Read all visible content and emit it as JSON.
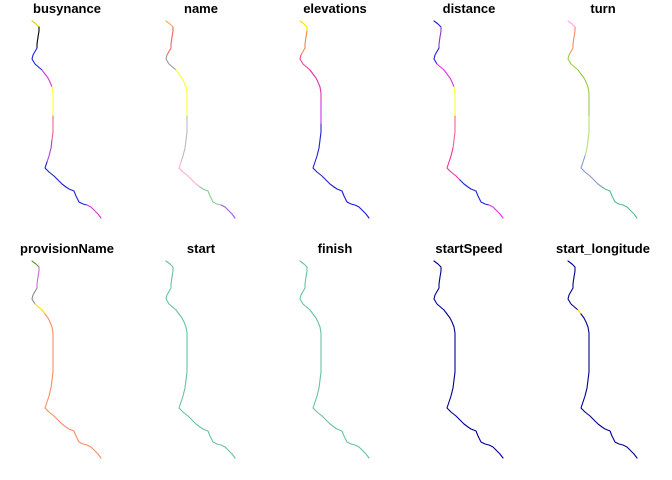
{
  "figure": {
    "panels": [
      {
        "title": "busynance",
        "segments": [
          {
            "from": 0,
            "to": 2,
            "color": "#e6d100"
          },
          {
            "from": 2,
            "to": 5,
            "color": "#000000"
          },
          {
            "from": 5,
            "to": 9,
            "color": "#1e1edc"
          },
          {
            "from": 9,
            "to": 13,
            "color": "#dd33dd"
          },
          {
            "from": 13,
            "to": 16,
            "color": "#ffff33"
          },
          {
            "from": 16,
            "to": 19,
            "color": "#ee6688"
          },
          {
            "from": 19,
            "to": 22,
            "color": "#aa44cc"
          },
          {
            "from": 22,
            "to": 27,
            "color": "#1a1ad0"
          },
          {
            "from": 27,
            "to": 32,
            "color": "#2222cc"
          },
          {
            "from": 32,
            "to": 36,
            "color": "#dd33dd"
          }
        ]
      },
      {
        "title": "name",
        "segments": [
          {
            "from": 0,
            "to": 2,
            "color": "#ffaa55"
          },
          {
            "from": 2,
            "to": 6,
            "color": "#ee6655"
          },
          {
            "from": 6,
            "to": 9,
            "color": "#999999"
          },
          {
            "from": 9,
            "to": 16,
            "color": "#ffff33"
          },
          {
            "from": 16,
            "to": 22,
            "color": "#bbbbbb"
          },
          {
            "from": 22,
            "to": 27,
            "color": "#ffaadd"
          },
          {
            "from": 27,
            "to": 32,
            "color": "#88cc99"
          },
          {
            "from": 32,
            "to": 36,
            "color": "#aa55dd"
          }
        ]
      },
      {
        "title": "elevations",
        "segments": [
          {
            "from": 0,
            "to": 3,
            "color": "#ffdd00"
          },
          {
            "from": 3,
            "to": 6,
            "color": "#ee8844"
          },
          {
            "from": 6,
            "to": 9,
            "color": "#ee4488"
          },
          {
            "from": 9,
            "to": 14,
            "color": "#dd33aa"
          },
          {
            "from": 14,
            "to": 17,
            "color": "#cc33ee"
          },
          {
            "from": 17,
            "to": 27,
            "color": "#2222cc"
          },
          {
            "from": 27,
            "to": 36,
            "color": "#1a1ad8"
          }
        ]
      },
      {
        "title": "distance",
        "segments": [
          {
            "from": 0,
            "to": 2,
            "color": "#1e1edc"
          },
          {
            "from": 2,
            "to": 5,
            "color": "#8833cc"
          },
          {
            "from": 5,
            "to": 8,
            "color": "#1e1edc"
          },
          {
            "from": 8,
            "to": 13,
            "color": "#dd33dd"
          },
          {
            "from": 13,
            "to": 16,
            "color": "#ffff33"
          },
          {
            "from": 16,
            "to": 20,
            "color": "#ee6688"
          },
          {
            "from": 20,
            "to": 25,
            "color": "#ee3399"
          },
          {
            "from": 25,
            "to": 32,
            "color": "#2222cc"
          },
          {
            "from": 32,
            "to": 36,
            "color": "#dd33dd"
          }
        ]
      },
      {
        "title": "turn",
        "segments": [
          {
            "from": 0,
            "to": 2,
            "color": "#ffaadd"
          },
          {
            "from": 2,
            "to": 6,
            "color": "#ff8866"
          },
          {
            "from": 6,
            "to": 16,
            "color": "#99cc44"
          },
          {
            "from": 16,
            "to": 21,
            "color": "#bbdd77"
          },
          {
            "from": 21,
            "to": 27,
            "color": "#8899cc"
          },
          {
            "from": 27,
            "to": 36,
            "color": "#55bb99"
          }
        ]
      },
      {
        "title": "provisionName",
        "segments": [
          {
            "from": 0,
            "to": 2,
            "color": "#669933"
          },
          {
            "from": 2,
            "to": 5,
            "color": "#cc66dd"
          },
          {
            "from": 5,
            "to": 8,
            "color": "#888888"
          },
          {
            "from": 8,
            "to": 10,
            "color": "#ffdd00"
          },
          {
            "from": 10,
            "to": 36,
            "color": "#fc8d62"
          }
        ]
      },
      {
        "title": "start",
        "segments": [
          {
            "from": 0,
            "to": 36,
            "color": "#66c2a5"
          }
        ]
      },
      {
        "title": "finish",
        "segments": [
          {
            "from": 0,
            "to": 36,
            "color": "#66c2a5"
          }
        ]
      },
      {
        "title": "startSpeed",
        "segments": [
          {
            "from": 0,
            "to": 36,
            "color": "#00008b"
          }
        ]
      },
      {
        "title": "start_longitude",
        "segments": [
          {
            "from": 0,
            "to": 9,
            "color": "#00008b"
          },
          {
            "from": 9,
            "to": 10,
            "color": "#ffd700"
          },
          {
            "from": 10,
            "to": 36,
            "color": "#00008b"
          }
        ]
      }
    ]
  }
}
